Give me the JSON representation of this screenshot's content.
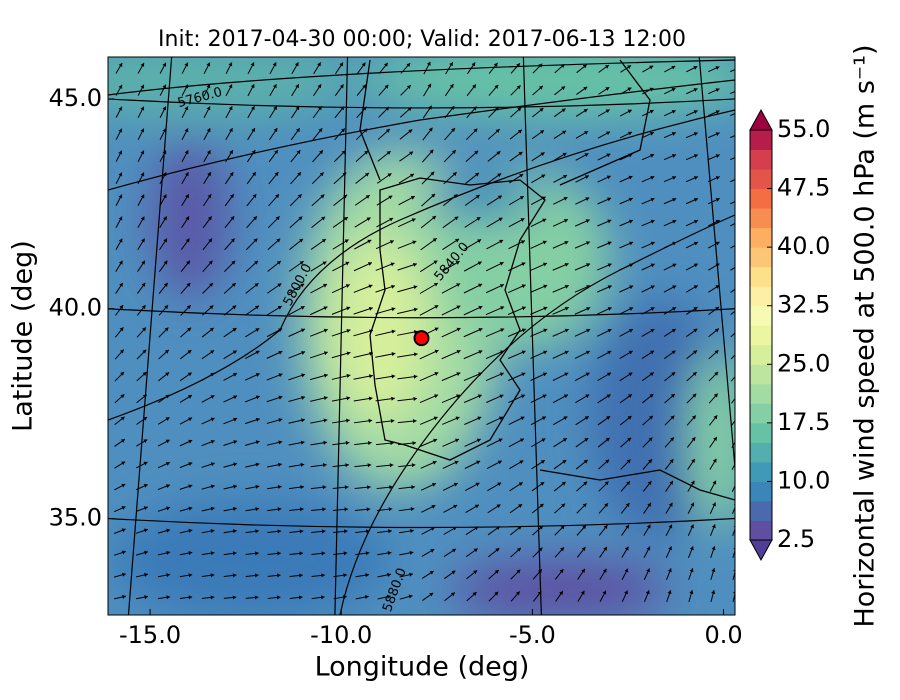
{
  "chart_data": {
    "type": "map",
    "title": "Init: 2017-04-30 00:00; Valid: 2017-06-13 12:00",
    "xlabel": "Longitude (deg)",
    "ylabel": "Latitude (deg)",
    "xlim": [
      -16.1,
      0.3
    ],
    "ylim": [
      32.7,
      46.0
    ],
    "xticks": [
      {
        "value": -15,
        "label": "-15.0"
      },
      {
        "value": -10,
        "label": "-10.0"
      },
      {
        "value": -5,
        "label": "-5.0"
      },
      {
        "value": 0,
        "label": "0.0"
      }
    ],
    "yticks": [
      {
        "value": 35,
        "label": "35.0"
      },
      {
        "value": 40,
        "label": "40.0"
      },
      {
        "value": 45,
        "label": "45.0"
      }
    ],
    "grid": true,
    "contour_labels": [
      "5760.0",
      "5800.0",
      "5840.0",
      "5880.0"
    ],
    "marker": {
      "lon": -7.9,
      "lat": 39.3,
      "color": "#ff0000"
    },
    "colorbar": {
      "label": "Horizontal wind speed at 500.0 hPa (m s⁻¹)",
      "lim": [
        2.5,
        55
      ],
      "ticks": [
        2.5,
        {
          "value": 10,
          "label": "10.0"
        },
        17.5,
        {
          "value": 25,
          "label": "25.0"
        },
        32.5,
        {
          "value": 40,
          "label": "40.0"
        },
        47.5,
        {
          "value": 55,
          "label": "55.0"
        }
      ],
      "colors": [
        "#5e4fa2",
        "#4a6aad",
        "#3a86b9",
        "#3f9ab8",
        "#53aeae",
        "#66c2a5",
        "#85cfa4",
        "#a3dba4",
        "#bde5a0",
        "#d6ef9b",
        "#ebf7a0",
        "#f7fbb2",
        "#fdefa3",
        "#fee08b",
        "#fdc576",
        "#fdae61",
        "#f88d52",
        "#f46d43",
        "#e35549",
        "#d53e4f",
        "#b61d4a"
      ],
      "under_color": "#4f3d96",
      "over_color": "#9e0142"
    }
  }
}
